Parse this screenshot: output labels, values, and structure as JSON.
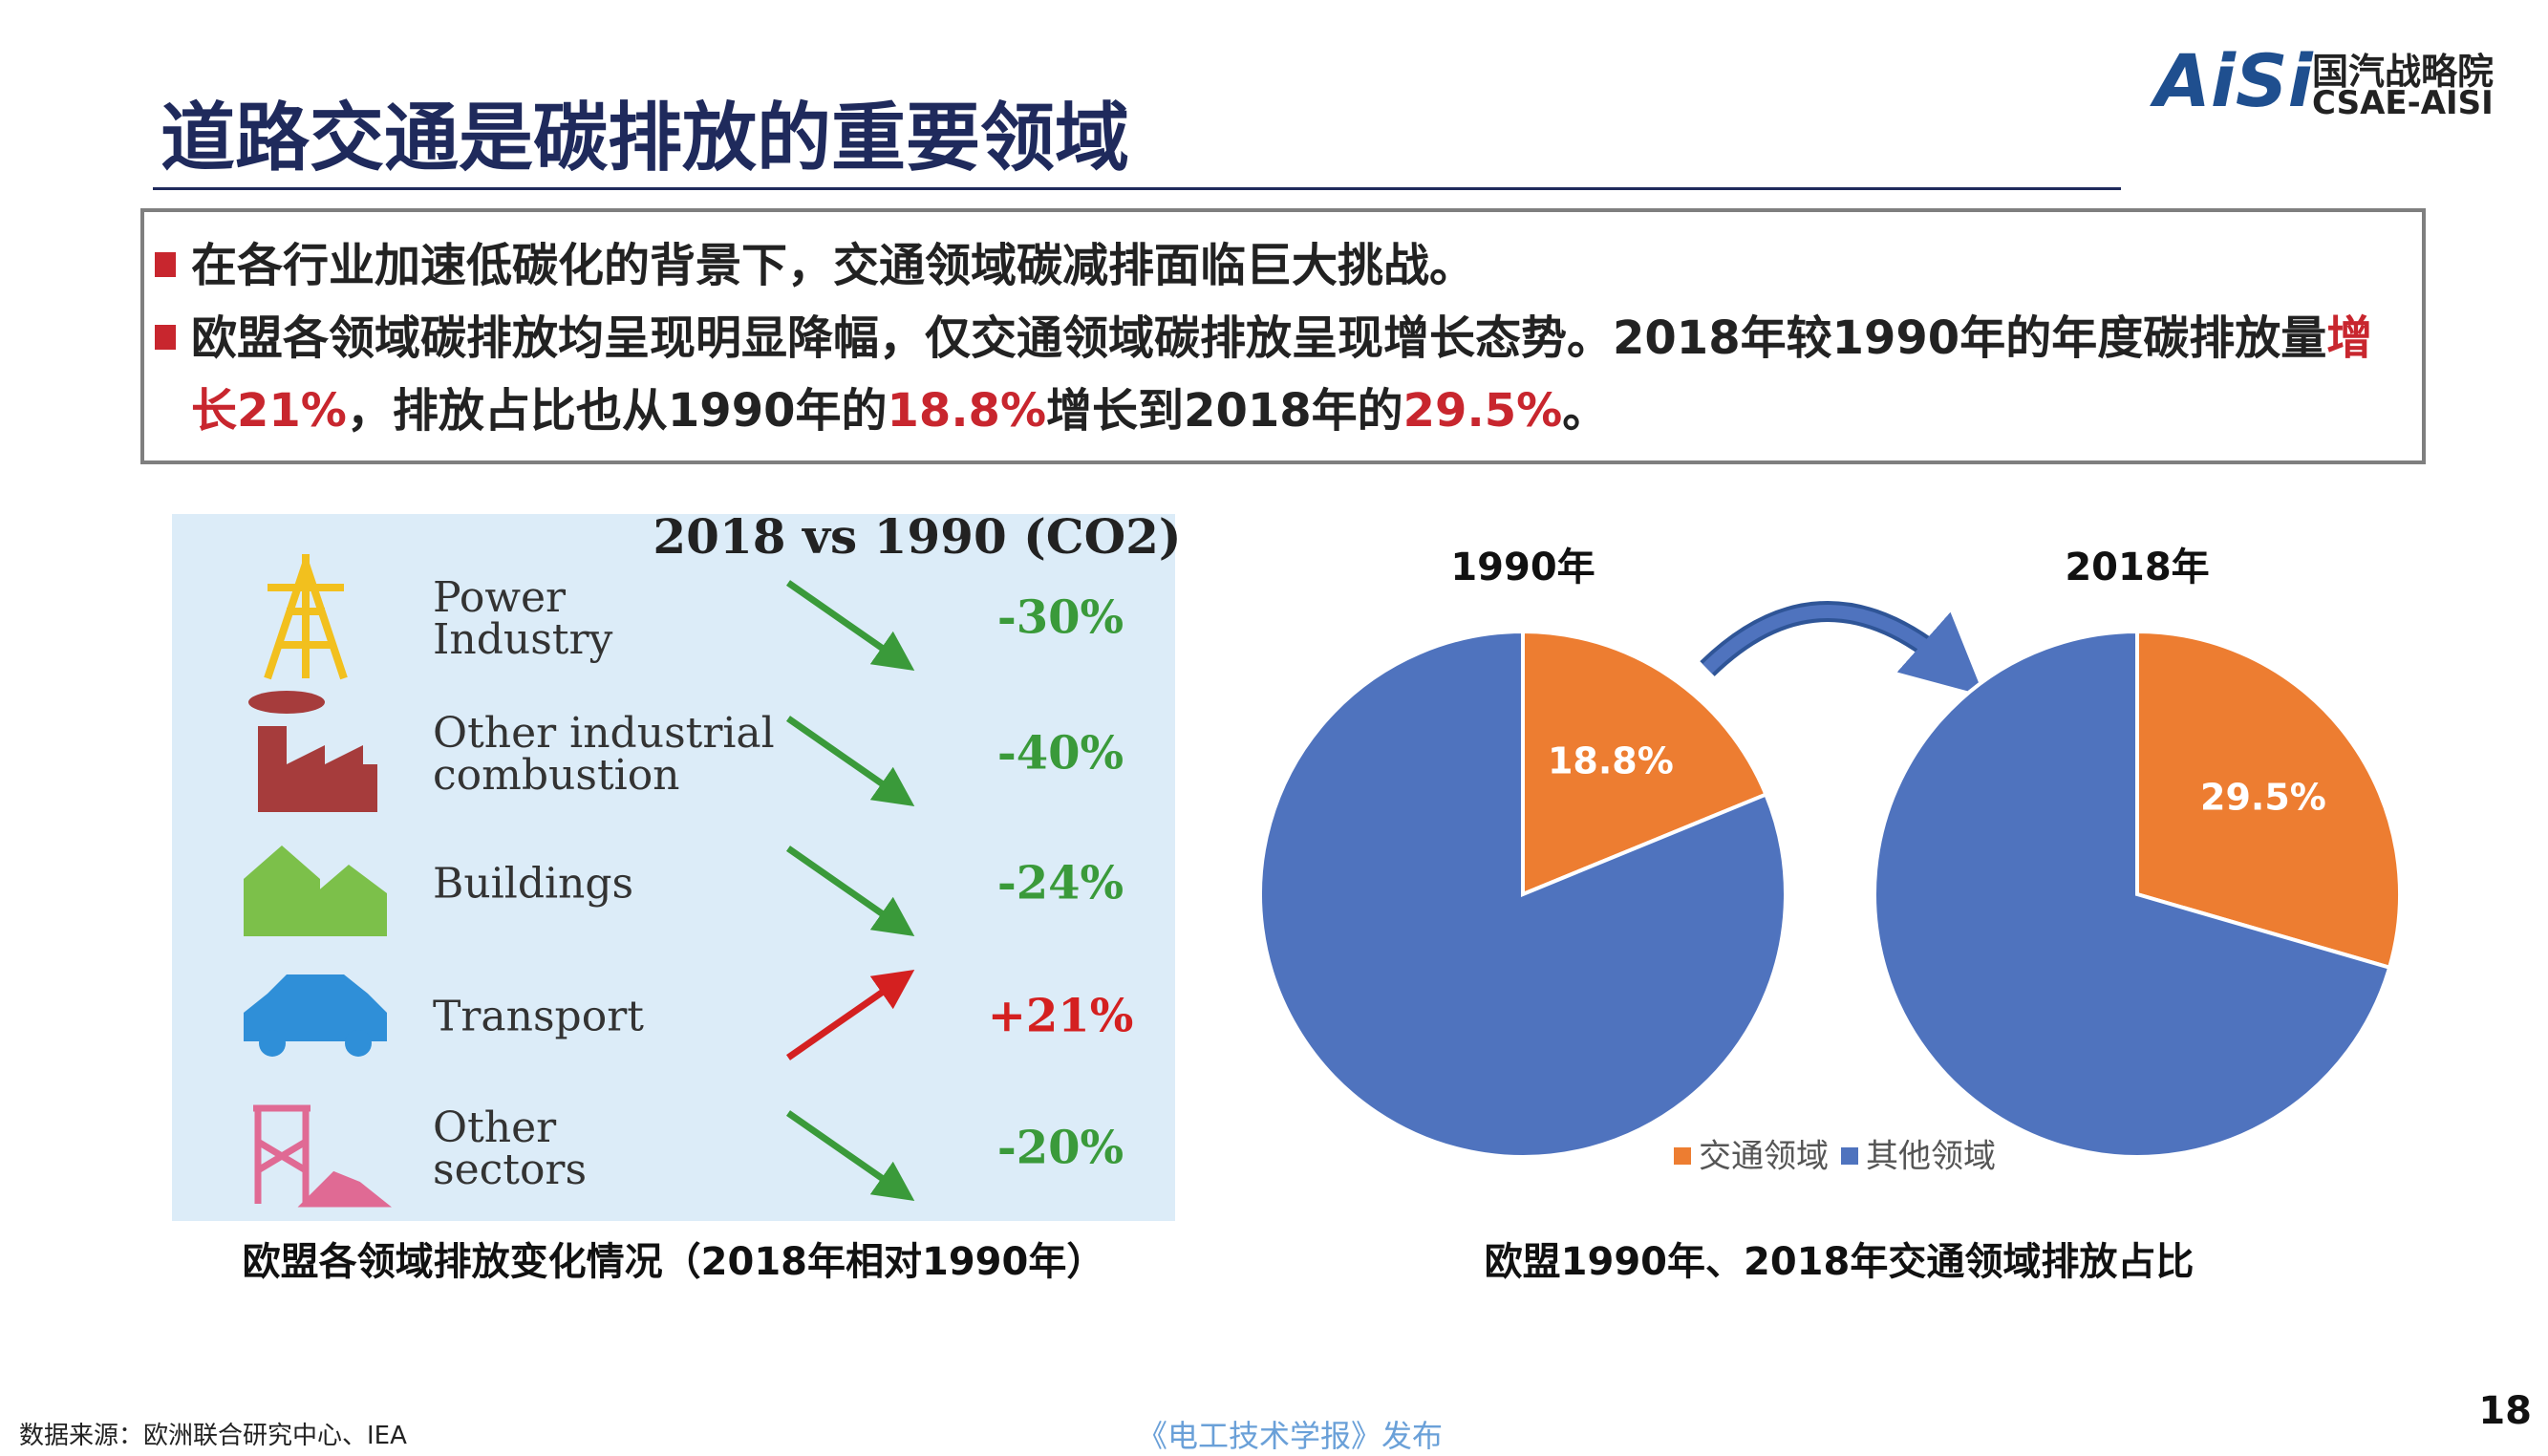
{
  "header": {
    "title": "道路交通是碳排放的重要领域",
    "logo_mark": "AiSi",
    "logo_name": "国汽战略院",
    "logo_sub": "CSAE-AISI"
  },
  "bullets": [
    {
      "runs": [
        {
          "text": "在各行业加速低碳化的背景下，交通领域碳减排面临巨大挑战。",
          "highlight": false
        }
      ]
    },
    {
      "runs": [
        {
          "text": "欧盟各领域碳排放均呈现明显降幅，仅交通领域碳排放呈现增长态势。2018年较1990年的年度碳排放量",
          "highlight": false
        },
        {
          "text": "增长21%",
          "highlight": true
        },
        {
          "text": "，排放占比也从1990年的",
          "highlight": false
        },
        {
          "text": "18.8%",
          "highlight": true
        },
        {
          "text": "增长到2018年的",
          "highlight": false
        },
        {
          "text": "29.5%",
          "highlight": true
        },
        {
          "text": "。",
          "highlight": false
        }
      ]
    }
  ],
  "left_panel": {
    "heading": "2018 vs 1990 (CO2)",
    "rows": [
      {
        "label": "Power Industry",
        "change": "-30%",
        "color": "#3a9a3a"
      },
      {
        "label": "Other industrial combustion",
        "change": "-40%",
        "color": "#3a9a3a"
      },
      {
        "label": "Buildings",
        "change": "-24%",
        "color": "#3a9a3a"
      },
      {
        "label": "Transport",
        "change": "+21%",
        "color": "#d42020"
      },
      {
        "label": "Other sectors",
        "change": "-20%",
        "color": "#3a9a3a"
      }
    ],
    "caption": "欧盟各领域排放变化情况（2018年相对1990年）"
  },
  "right_panel": {
    "legend": [
      {
        "name": "交通领域",
        "color": "#ed7d31"
      },
      {
        "name": "其他领域",
        "color": "#4f73be"
      }
    ],
    "pies": [
      {
        "title": "1990年",
        "values": [
          18.8,
          81.2
        ],
        "value_labels": [
          "18.8%",
          null
        ]
      },
      {
        "title": "2018年",
        "values": [
          29.5,
          70.5
        ],
        "value_labels": [
          "29.5%",
          null
        ]
      }
    ],
    "caption": "欧盟1990年、2018年交通领域排放占比"
  },
  "footer": {
    "source": "数据来源：欧洲联合研究中心、IEA",
    "publisher": "《电工技术学报》发布",
    "page": "18"
  }
}
